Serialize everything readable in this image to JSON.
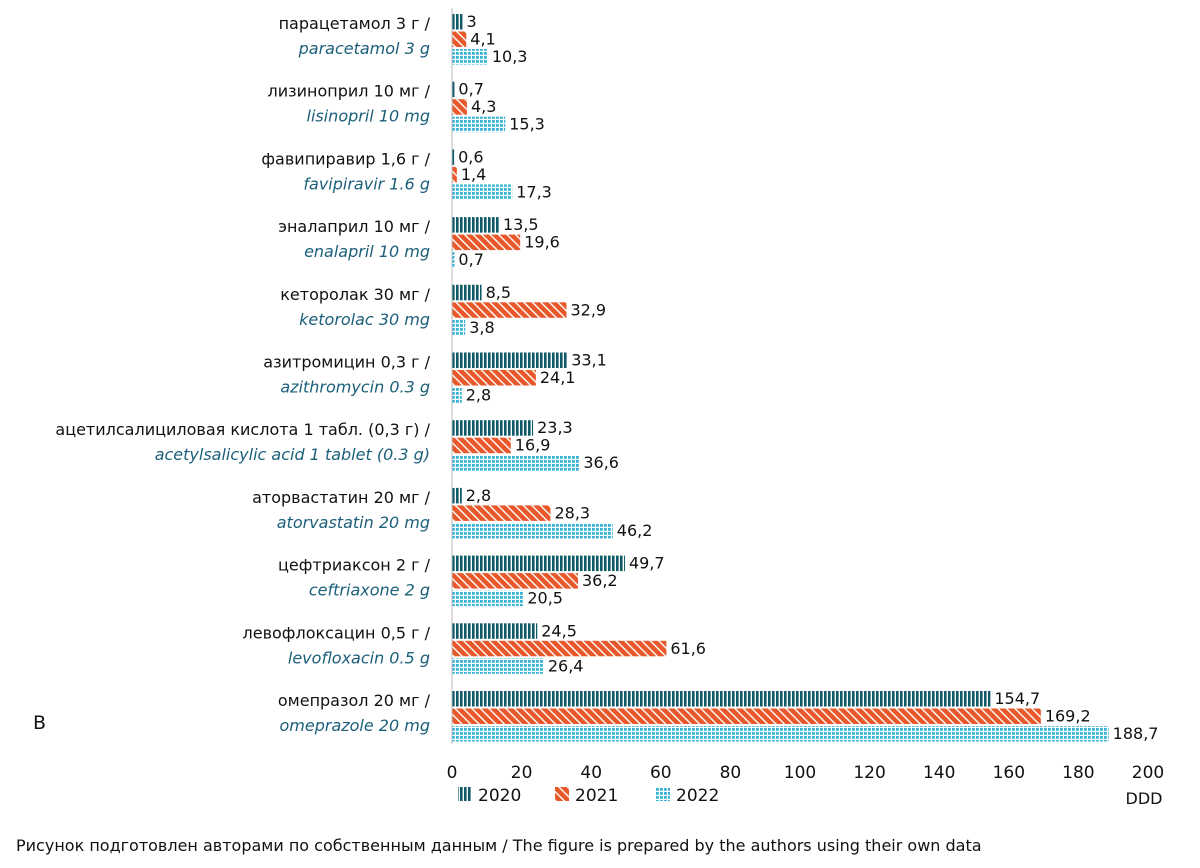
{
  "panel_label": "B",
  "caption": "Рисунок подготовлен авторами по собственным данным / The figure is prepared by the authors using their own data",
  "colors": {
    "s2020": "#0f5a68",
    "s2021": "#e8582a",
    "s2022": "#35b3d6",
    "en_label": "#1b5f7a"
  },
  "chart_data": {
    "type": "bar",
    "orientation": "horizontal",
    "categories": [
      {
        "ru": "парацетамол 3 г /",
        "en": "paracetamol 3 g"
      },
      {
        "ru": "лизиноприл 10 мг /",
        "en": "lisinopril 10 mg"
      },
      {
        "ru": "фавипиравир 1,6 г /",
        "en": "favipiravir 1.6 g"
      },
      {
        "ru": "эналаприл 10 мг /",
        "en": "enalapril 10 mg"
      },
      {
        "ru": "кеторолак 30 мг /",
        "en": "ketorolac 30 mg"
      },
      {
        "ru": "азитромицин 0,3 г /",
        "en": "azithromycin 0.3 g"
      },
      {
        "ru": "ацетилсалициловая кислота 1 табл. (0,3 г) /",
        "en": "acetylsalicylic acid 1 tablet (0.3 g)"
      },
      {
        "ru": "аторвастатин 20 мг /",
        "en": "atorvastatin 20 mg"
      },
      {
        "ru": "цефтриаксон 2 г /",
        "en": "ceftriaxone 2 g"
      },
      {
        "ru": "левофлоксацин 0,5 г /",
        "en": "levofloxacin 0.5 g"
      },
      {
        "ru": "омепразол 20 мг /",
        "en": "omeprazole 20 mg"
      }
    ],
    "series": [
      {
        "name": "2020",
        "values": [
          3,
          0.7,
          0.6,
          13.5,
          8.5,
          33.1,
          23.3,
          2.8,
          49.7,
          24.5,
          154.7
        ],
        "labels": [
          "3",
          "0,7",
          "0,6",
          "13,5",
          "8,5",
          "33,1",
          "23,3",
          "2,8",
          "49,7",
          "24,5",
          "154,7"
        ]
      },
      {
        "name": "2021",
        "values": [
          4.1,
          4.3,
          1.4,
          19.6,
          32.9,
          24.1,
          16.9,
          28.3,
          36.2,
          61.6,
          169.2
        ],
        "labels": [
          "4,1",
          "4,3",
          "1,4",
          "19,6",
          "32,9",
          "24,1",
          "16,9",
          "28,3",
          "36,2",
          "61,6",
          "169,2"
        ]
      },
      {
        "name": "2022",
        "values": [
          10.3,
          15.3,
          17.3,
          0.7,
          3.8,
          2.8,
          36.6,
          46.2,
          20.5,
          26.4,
          188.7
        ],
        "labels": [
          "10,3",
          "15,3",
          "17,3",
          "0,7",
          "3,8",
          "2,8",
          "36,6",
          "46,2",
          "20,5",
          "26,4",
          "188,7"
        ]
      }
    ],
    "xticks": [
      "0",
      "20",
      "40",
      "60",
      "80",
      "100",
      "120",
      "140",
      "160",
      "180",
      "200"
    ],
    "xlim": [
      0,
      200
    ],
    "xlabel": "DDD",
    "grid": false,
    "legend_position": "bottom"
  }
}
